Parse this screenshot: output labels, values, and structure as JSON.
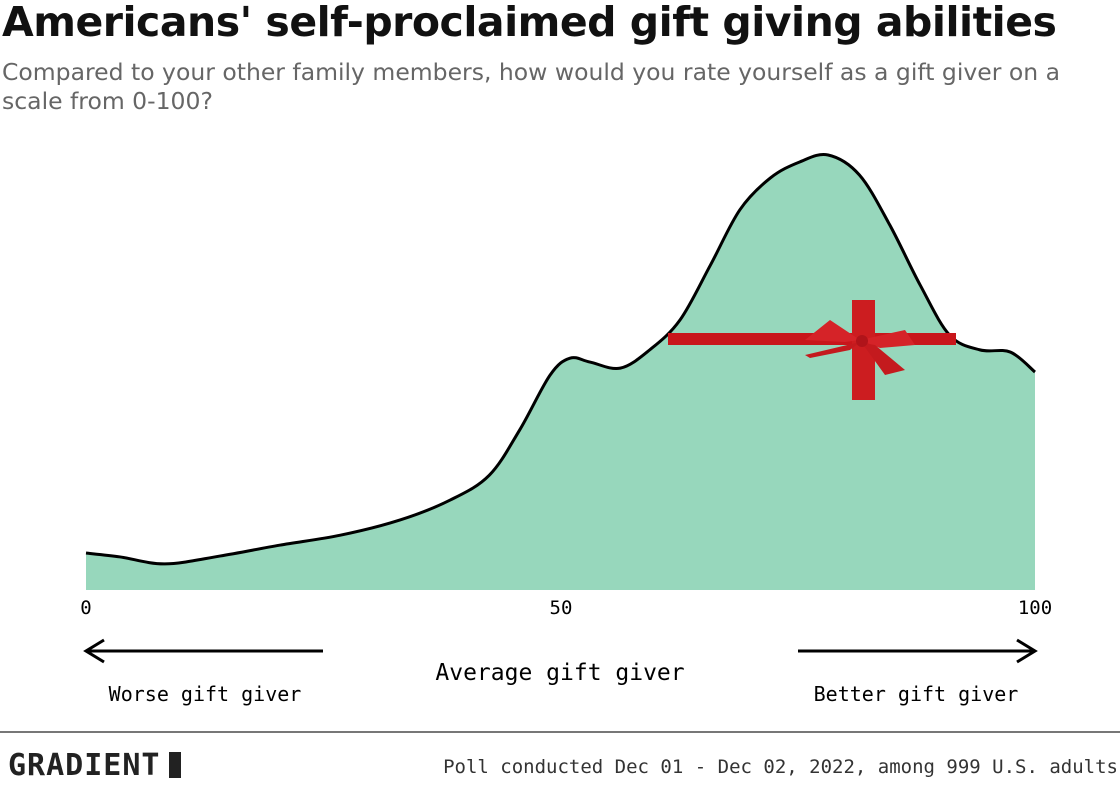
{
  "chart_data": {
    "type": "area",
    "title": "Americans' self-proclaimed gift giving abilities",
    "subtitle": "Compared to your other family members, how would you rate yourself as a gift giver on a scale from 0-100?",
    "xlim": [
      0,
      100
    ],
    "xticks": [
      "0",
      "50",
      "100"
    ],
    "x": [
      0,
      3.6,
      8.3,
      14.1,
      20.4,
      26.8,
      33.1,
      38.4,
      42.5,
      45.7,
      48.9,
      51.0,
      53.1,
      56.3,
      59.4,
      62.6,
      65.8,
      68.9,
      72.1,
      75.2,
      78.2,
      81.5,
      84.7,
      87.9,
      91.0,
      94.2,
      97.4,
      100
    ],
    "density_relative": [
      0.085,
      0.076,
      0.06,
      0.078,
      0.103,
      0.126,
      0.161,
      0.207,
      0.264,
      0.368,
      0.494,
      0.533,
      0.524,
      0.51,
      0.552,
      0.621,
      0.747,
      0.874,
      0.947,
      0.984,
      1.0,
      0.954,
      0.839,
      0.701,
      0.586,
      0.552,
      0.547,
      0.501
    ],
    "fill_color": "#97d7bc",
    "line_color": "#000000",
    "grid": false,
    "annotations": {
      "left": "Worse gift giver",
      "center": "Average gift giver",
      "right": "Better gift giver"
    },
    "decoration": "red-ribbon-bow"
  },
  "footer": {
    "logo": "GRADIENT",
    "note": "Poll conducted Dec 01 - Dec 02, 2022, among 999 U.S. adults"
  }
}
